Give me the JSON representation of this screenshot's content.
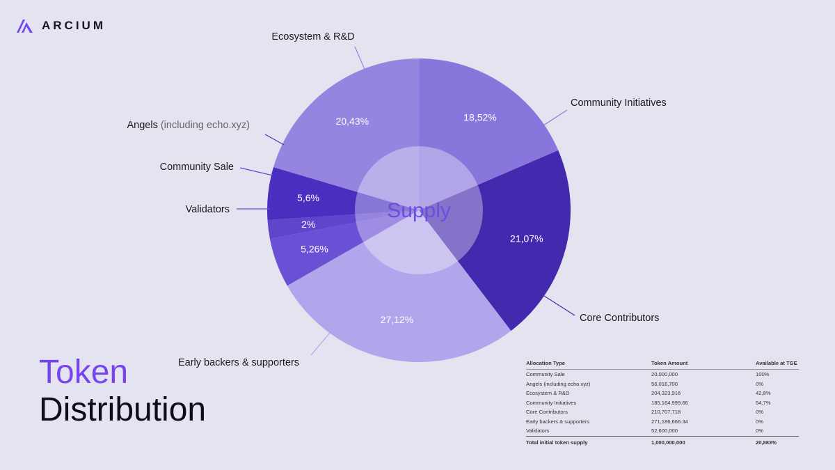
{
  "brand": {
    "name": "ARCIUM",
    "logo_icon": "arcium-logo-icon",
    "accent": "#7745f0"
  },
  "title": {
    "line1": "Token",
    "line2": "Distribution"
  },
  "chart_data": {
    "type": "pie",
    "center_label": "Supply",
    "slices": [
      {
        "label": "Ecosystem & R&D",
        "note": "",
        "value": 20.43,
        "value_label": "20,43%",
        "color": "#9585e0"
      },
      {
        "label": "Community Initiatives",
        "note": "",
        "value": 18.52,
        "value_label": "18,52%",
        "color": "#8876dc"
      },
      {
        "label": "Core Contributors",
        "note": "",
        "value": 21.07,
        "value_label": "21,07%",
        "color": "#4329ad"
      },
      {
        "label": "Early backers & supporters",
        "note": "",
        "value": 27.12,
        "value_label": "27,12%",
        "color": "#b1a6eb"
      },
      {
        "label": "Validators",
        "note": "",
        "value": 5.26,
        "value_label": "5,26%",
        "color": "#6a50d4"
      },
      {
        "label": "Community Sale",
        "note": "",
        "value": 2,
        "value_label": "2%",
        "color": "#5f44cc"
      },
      {
        "label": "Angels",
        "note": "(including echo.xyz)",
        "value": 5.6,
        "value_label": "5,6%",
        "color": "#4a2ec0"
      }
    ]
  },
  "table": {
    "headers": [
      "Allocation Type",
      "Token Amount",
      "Available at TGE"
    ],
    "rows": [
      [
        "Community Sale",
        "20,000,000",
        "100%"
      ],
      [
        "Angels (including echo.xyz)",
        "56,016,700",
        "0%"
      ],
      [
        "Ecosystem & R&D",
        "204,323,916",
        "42,8%"
      ],
      [
        "Community Initiatives",
        "185,164,999.66",
        "54,7%"
      ],
      [
        "Core Contributors",
        "210,707,718",
        "0%"
      ],
      [
        "Early backers & supporters",
        "271,186,666.34",
        "0%"
      ],
      [
        "Validators",
        "52,600,000",
        "0%"
      ]
    ],
    "total": [
      "Total initial token supply",
      "1,000,000,000",
      "20,883%"
    ]
  }
}
